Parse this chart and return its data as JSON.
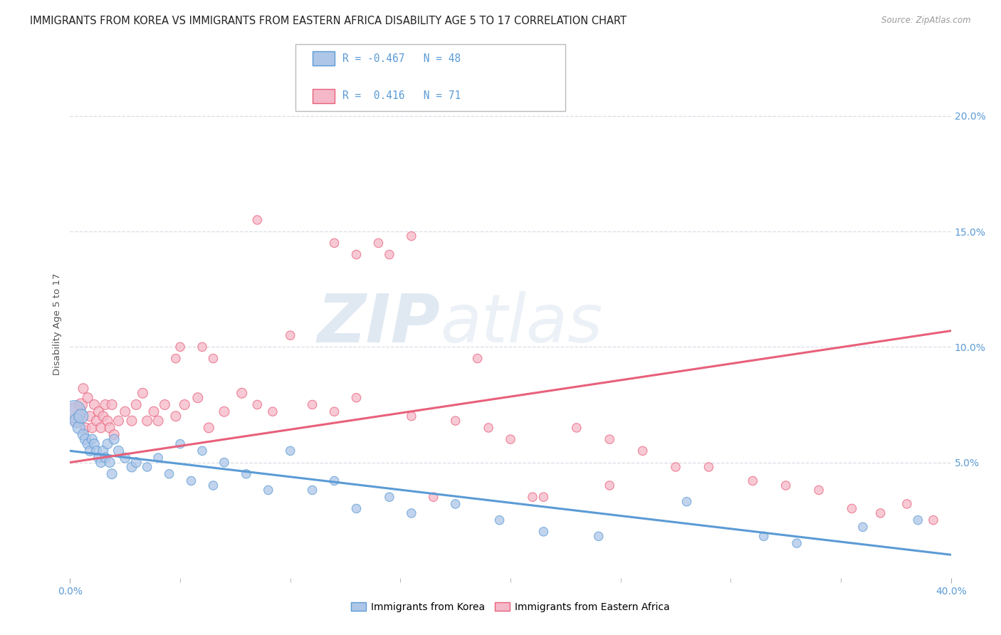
{
  "title": "IMMIGRANTS FROM KOREA VS IMMIGRANTS FROM EASTERN AFRICA DISABILITY AGE 5 TO 17 CORRELATION CHART",
  "source": "Source: ZipAtlas.com",
  "ylabel": "Disability Age 5 to 17",
  "watermark_zip": "ZIP",
  "watermark_atlas": "atlas",
  "xlim": [
    0.0,
    0.4
  ],
  "ylim": [
    0.0,
    0.22
  ],
  "xticks": [
    0.0,
    0.4
  ],
  "xticklabels": [
    "0.0%",
    "40.0%"
  ],
  "yticks_right": [
    0.05,
    0.1,
    0.15,
    0.2
  ],
  "yticklabels_right": [
    "5.0%",
    "10.0%",
    "15.0%",
    "20.0%"
  ],
  "korea_R": -0.467,
  "korea_N": 48,
  "africa_R": 0.416,
  "africa_N": 71,
  "korea_color": "#aec6e8",
  "africa_color": "#f5b8c8",
  "korea_line_color": "#5b9bd5",
  "africa_line_color": "#e8607a",
  "legend_label_korea": "Immigrants from Korea",
  "legend_label_africa": "Immigrants from Eastern Africa",
  "korea_trend_start": 0.055,
  "korea_trend_end": 0.01,
  "africa_trend_start": 0.05,
  "africa_trend_end": 0.107,
  "korea_x": [
    0.002,
    0.003,
    0.004,
    0.005,
    0.006,
    0.007,
    0.008,
    0.009,
    0.01,
    0.011,
    0.012,
    0.013,
    0.014,
    0.015,
    0.016,
    0.017,
    0.018,
    0.019,
    0.02,
    0.022,
    0.025,
    0.028,
    0.03,
    0.035,
    0.04,
    0.045,
    0.05,
    0.055,
    0.06,
    0.065,
    0.07,
    0.08,
    0.09,
    0.1,
    0.11,
    0.12,
    0.13,
    0.145,
    0.155,
    0.175,
    0.195,
    0.215,
    0.24,
    0.28,
    0.315,
    0.33,
    0.36,
    0.385
  ],
  "korea_y": [
    0.072,
    0.068,
    0.065,
    0.07,
    0.062,
    0.06,
    0.058,
    0.055,
    0.06,
    0.058,
    0.055,
    0.052,
    0.05,
    0.055,
    0.052,
    0.058,
    0.05,
    0.045,
    0.06,
    0.055,
    0.052,
    0.048,
    0.05,
    0.048,
    0.052,
    0.045,
    0.058,
    0.042,
    0.055,
    0.04,
    0.05,
    0.045,
    0.038,
    0.055,
    0.038,
    0.042,
    0.03,
    0.035,
    0.028,
    0.032,
    0.025,
    0.02,
    0.018,
    0.033,
    0.018,
    0.015,
    0.022,
    0.025
  ],
  "korea_sizes": [
    500,
    200,
    150,
    200,
    120,
    120,
    100,
    100,
    100,
    100,
    100,
    100,
    100,
    100,
    100,
    100,
    100,
    100,
    100,
    100,
    100,
    100,
    100,
    80,
    80,
    80,
    80,
    80,
    80,
    80,
    80,
    80,
    80,
    80,
    80,
    80,
    80,
    80,
    80,
    80,
    80,
    80,
    80,
    80,
    80,
    80,
    80,
    80
  ],
  "africa_x": [
    0.002,
    0.003,
    0.004,
    0.005,
    0.006,
    0.007,
    0.008,
    0.009,
    0.01,
    0.011,
    0.012,
    0.013,
    0.014,
    0.015,
    0.016,
    0.017,
    0.018,
    0.019,
    0.02,
    0.022,
    0.025,
    0.028,
    0.03,
    0.033,
    0.035,
    0.038,
    0.04,
    0.043,
    0.048,
    0.052,
    0.058,
    0.063,
    0.07,
    0.078,
    0.085,
    0.092,
    0.1,
    0.11,
    0.12,
    0.13,
    0.14,
    0.155,
    0.165,
    0.175,
    0.19,
    0.2,
    0.215,
    0.23,
    0.245,
    0.26,
    0.275,
    0.29,
    0.31,
    0.325,
    0.34,
    0.355,
    0.368,
    0.38,
    0.392,
    0.145,
    0.05,
    0.048,
    0.06,
    0.065,
    0.085,
    0.12,
    0.13,
    0.155,
    0.185,
    0.21,
    0.245
  ],
  "africa_y": [
    0.072,
    0.068,
    0.07,
    0.075,
    0.082,
    0.065,
    0.078,
    0.07,
    0.065,
    0.075,
    0.068,
    0.072,
    0.065,
    0.07,
    0.075,
    0.068,
    0.065,
    0.075,
    0.062,
    0.068,
    0.072,
    0.068,
    0.075,
    0.08,
    0.068,
    0.072,
    0.068,
    0.075,
    0.07,
    0.075,
    0.078,
    0.065,
    0.072,
    0.08,
    0.075,
    0.072,
    0.105,
    0.075,
    0.072,
    0.078,
    0.145,
    0.07,
    0.035,
    0.068,
    0.065,
    0.06,
    0.035,
    0.065,
    0.06,
    0.055,
    0.048,
    0.048,
    0.042,
    0.04,
    0.038,
    0.03,
    0.028,
    0.032,
    0.025,
    0.14,
    0.1,
    0.095,
    0.1,
    0.095,
    0.155,
    0.145,
    0.14,
    0.148,
    0.095,
    0.035,
    0.04
  ],
  "africa_sizes": [
    300,
    150,
    120,
    150,
    100,
    100,
    100,
    100,
    100,
    100,
    100,
    100,
    100,
    100,
    100,
    100,
    100,
    100,
    100,
    100,
    100,
    100,
    100,
    100,
    100,
    100,
    100,
    100,
    100,
    100,
    100,
    100,
    100,
    100,
    80,
    80,
    80,
    80,
    80,
    80,
    80,
    80,
    80,
    80,
    80,
    80,
    80,
    80,
    80,
    80,
    80,
    80,
    80,
    80,
    80,
    80,
    80,
    80,
    80,
    80,
    80,
    80,
    80,
    80,
    80,
    80,
    80,
    80,
    80,
    80,
    80
  ],
  "background_color": "#ffffff",
  "grid_color": "#d8dde6",
  "title_fontsize": 10.5,
  "axis_fontsize": 10,
  "tick_color": "#5b9bd5"
}
